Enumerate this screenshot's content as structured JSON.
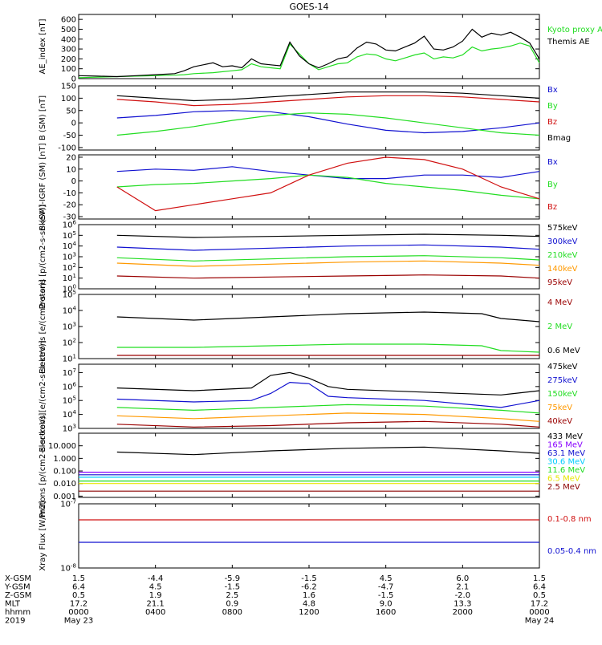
{
  "title": "GOES-14",
  "colors": {
    "black": "#000000",
    "blue": "#1010d0",
    "green": "#22dd22",
    "red": "#d01010",
    "dark_red": "#9a0000",
    "orange": "#ff9900",
    "yellow": "#e6e600",
    "cyan": "#00ccff",
    "pink": "#ff9999",
    "purple": "#8800ff",
    "brown": "#8b0000"
  },
  "chart_data": [
    {
      "type": "line",
      "ylabel": "AE_index [nT]",
      "ylim": [
        0,
        650
      ],
      "ticks": [
        "600",
        "500",
        "400",
        "300",
        "200",
        "100",
        "0"
      ],
      "tick_values": [
        600,
        500,
        400,
        300,
        200,
        100,
        0
      ],
      "legend": [
        "Kyoto proxy AE",
        "Themis AE"
      ],
      "series": [
        {
          "name": "Kyoto proxy AE",
          "color": "green",
          "x": [
            0,
            1,
            2,
            3,
            4,
            5,
            5.5,
            6,
            7,
            7.5,
            8,
            8.5,
            9,
            9.5,
            10,
            10.5,
            11,
            11.5,
            12,
            12.5,
            13,
            13.5,
            14,
            14.5,
            15,
            15.5,
            16,
            16.5,
            17,
            17.5,
            18,
            18.5,
            19,
            19.5,
            20,
            20.5,
            21,
            21.5,
            22,
            22.5,
            23,
            23.5,
            24
          ],
          "values": [
            10,
            15,
            20,
            25,
            30,
            35,
            40,
            50,
            60,
            70,
            80,
            90,
            150,
            120,
            110,
            100,
            350,
            250,
            150,
            90,
            120,
            150,
            160,
            220,
            250,
            240,
            200,
            180,
            210,
            240,
            260,
            200,
            220,
            210,
            240,
            320,
            280,
            300,
            310,
            330,
            360,
            330,
            160
          ]
        },
        {
          "name": "Themis AE",
          "color": "black",
          "x": [
            0,
            1,
            2,
            3,
            4,
            5,
            5.5,
            6,
            7,
            7.5,
            8,
            8.5,
            9,
            9.5,
            10,
            10.5,
            11,
            11.5,
            12,
            12.5,
            13,
            13.5,
            14,
            14.5,
            15,
            15.5,
            16,
            16.5,
            17,
            17.5,
            18,
            18.5,
            19,
            19.5,
            20,
            20.5,
            21,
            21.5,
            22,
            22.5,
            23,
            23.5,
            24
          ],
          "values": [
            30,
            25,
            20,
            30,
            40,
            50,
            80,
            120,
            160,
            120,
            130,
            110,
            200,
            150,
            140,
            130,
            370,
            230,
            150,
            110,
            150,
            200,
            220,
            310,
            370,
            350,
            290,
            280,
            320,
            360,
            430,
            300,
            290,
            320,
            380,
            500,
            420,
            460,
            440,
            470,
            420,
            360,
            200
          ]
        }
      ]
    },
    {
      "type": "line",
      "ylabel": "B (SM) [nT]",
      "ylim": [
        -110,
        150
      ],
      "ticks": [
        "150",
        "100",
        "50",
        "0",
        "-50",
        "-100"
      ],
      "tick_values": [
        150,
        100,
        50,
        0,
        -50,
        -100
      ],
      "legend": [
        "Bx",
        "By",
        "Bz",
        "Bmag"
      ],
      "series": [
        {
          "name": "Bx",
          "color": "blue",
          "x": [
            2,
            4,
            6,
            8,
            10,
            12,
            14,
            16,
            18,
            20,
            22,
            24
          ],
          "values": [
            20,
            30,
            45,
            50,
            45,
            25,
            -5,
            -30,
            -40,
            -35,
            -20,
            0
          ]
        },
        {
          "name": "By",
          "color": "green",
          "x": [
            2,
            4,
            6,
            8,
            10,
            12,
            14,
            16,
            18,
            20,
            22,
            24
          ],
          "values": [
            -50,
            -35,
            -15,
            10,
            30,
            40,
            35,
            20,
            0,
            -20,
            -40,
            -50
          ]
        },
        {
          "name": "Bz",
          "color": "red",
          "x": [
            2,
            4,
            6,
            8,
            10,
            12,
            14,
            16,
            18,
            20,
            22,
            24
          ],
          "values": [
            95,
            85,
            70,
            75,
            85,
            95,
            105,
            110,
            110,
            105,
            95,
            85
          ]
        },
        {
          "name": "Bmag",
          "color": "black",
          "x": [
            2,
            4,
            6,
            8,
            10,
            12,
            14,
            16,
            18,
            20,
            22,
            24
          ],
          "values": [
            110,
            100,
            90,
            95,
            105,
            115,
            125,
            125,
            125,
            120,
            110,
            100
          ]
        }
      ]
    },
    {
      "type": "line",
      "ylabel": "B (SM)-IGRF (SM) [nT]",
      "ylim": [
        -32,
        22
      ],
      "ticks": [
        "20",
        "10",
        "0",
        "-10",
        "-20",
        "-30"
      ],
      "tick_values": [
        20,
        10,
        0,
        -10,
        -20,
        -30
      ],
      "legend": [
        "Bx",
        "By",
        "Bz"
      ],
      "series": [
        {
          "name": "Bx",
          "color": "blue",
          "x": [
            2,
            4,
            6,
            8,
            10,
            12,
            14,
            16,
            18,
            20,
            22,
            24
          ],
          "values": [
            8,
            10,
            9,
            12,
            8,
            5,
            2,
            2,
            5,
            5,
            3,
            8
          ]
        },
        {
          "name": "By",
          "color": "green",
          "x": [
            2,
            4,
            6,
            8,
            10,
            12,
            14,
            16,
            18,
            20,
            22,
            24
          ],
          "values": [
            -5,
            -3,
            -2,
            0,
            2,
            5,
            3,
            -2,
            -5,
            -8,
            -12,
            -15
          ]
        },
        {
          "name": "Bz",
          "color": "red",
          "x": [
            2,
            4,
            6,
            8,
            10,
            12,
            14,
            16,
            18,
            20,
            22,
            24
          ],
          "values": [
            -5,
            -25,
            -20,
            -15,
            -10,
            5,
            15,
            20,
            18,
            10,
            -5,
            -15
          ]
        }
      ]
    },
    {
      "type": "line",
      "log": true,
      "ylabel": "Protons [p/(cm2-s-sr-keV)]",
      "ylim": [
        0,
        6
      ],
      "ticks": [
        "10^6",
        "10^5",
        "10^4",
        "10^3",
        "10^2",
        "10^1",
        "10^0"
      ],
      "tick_values": [
        6,
        5,
        4,
        3,
        2,
        1,
        0
      ],
      "legend": [
        "575keV",
        "300keV",
        "210keV",
        "140keV",
        "95keV"
      ],
      "series": [
        {
          "name": "575keV",
          "color": "black",
          "x": [
            2,
            6,
            10,
            14,
            18,
            22,
            24
          ],
          "values": [
            5.0,
            4.8,
            4.9,
            5.0,
            5.1,
            5.0,
            4.9
          ]
        },
        {
          "name": "300keV",
          "color": "blue",
          "x": [
            2,
            6,
            10,
            14,
            18,
            22,
            24
          ],
          "values": [
            3.9,
            3.6,
            3.8,
            4.0,
            4.1,
            3.9,
            3.7
          ]
        },
        {
          "name": "210keV",
          "color": "green",
          "x": [
            2,
            6,
            10,
            14,
            18,
            22,
            24
          ],
          "values": [
            2.9,
            2.6,
            2.8,
            3.0,
            3.1,
            2.9,
            2.7
          ]
        },
        {
          "name": "140keV",
          "color": "orange",
          "x": [
            2,
            6,
            10,
            14,
            18,
            22,
            24
          ],
          "values": [
            2.4,
            2.1,
            2.3,
            2.5,
            2.6,
            2.4,
            2.2
          ]
        },
        {
          "name": "95keV",
          "color": "dark_red",
          "x": [
            2,
            6,
            10,
            14,
            18,
            22,
            24
          ],
          "values": [
            1.2,
            1.0,
            1.1,
            1.2,
            1.3,
            1.2,
            1.0
          ]
        }
      ]
    },
    {
      "type": "line",
      "log": true,
      "ylabel": "Electrons [e/(cm2-s-sr)]",
      "ylim": [
        1,
        5
      ],
      "ticks": [
        "10^5",
        "10^4",
        "10^3",
        "10^2",
        "10^1"
      ],
      "tick_values": [
        5,
        4,
        3,
        2,
        1
      ],
      "legend": [
        "4 MeV",
        "2 MeV",
        "0.6 MeV"
      ],
      "series": [
        {
          "name": "4 MeV",
          "color": "dark_red",
          "x": [
            2,
            24
          ],
          "values": [
            1.2,
            1.2
          ]
        },
        {
          "name": "2 MeV",
          "color": "green",
          "x": [
            2,
            6,
            10,
            14,
            18,
            21,
            22,
            24
          ],
          "values": [
            1.7,
            1.7,
            1.8,
            1.9,
            1.9,
            1.8,
            1.5,
            1.4
          ]
        },
        {
          "name": "0.6 MeV",
          "color": "black",
          "x": [
            2,
            6,
            10,
            14,
            18,
            21,
            22,
            24
          ],
          "values": [
            3.6,
            3.4,
            3.6,
            3.8,
            3.9,
            3.8,
            3.5,
            3.3
          ]
        }
      ]
    },
    {
      "type": "line",
      "log": true,
      "ylabel": "Electrons [e/(cm2-s-sr-keV)]",
      "ylim": [
        3,
        7.6
      ],
      "ticks": [
        "10^7",
        "10^6",
        "10^5",
        "10^4",
        "10^3"
      ],
      "tick_values": [
        7,
        6,
        5,
        4,
        3
      ],
      "legend": [
        "475keV",
        "275keV",
        "150keV",
        "75keV",
        "40keV"
      ],
      "series": [
        {
          "name": "475keV",
          "color": "black",
          "x": [
            2,
            6,
            9,
            10,
            11,
            12,
            13,
            14,
            18,
            22,
            24
          ],
          "values": [
            5.9,
            5.7,
            5.9,
            6.8,
            7.0,
            6.6,
            6.0,
            5.8,
            5.6,
            5.4,
            5.7
          ]
        },
        {
          "name": "275keV",
          "color": "blue",
          "x": [
            2,
            6,
            9,
            10,
            11,
            12,
            13,
            14,
            18,
            22,
            24
          ],
          "values": [
            5.1,
            4.9,
            5.0,
            5.5,
            6.3,
            6.2,
            5.3,
            5.2,
            5.0,
            4.5,
            5.0
          ]
        },
        {
          "name": "150keV",
          "color": "green",
          "x": [
            2,
            6,
            10,
            14,
            18,
            22,
            24
          ],
          "values": [
            4.5,
            4.3,
            4.5,
            4.7,
            4.6,
            4.3,
            4.1
          ]
        },
        {
          "name": "75keV",
          "color": "orange",
          "x": [
            2,
            6,
            10,
            14,
            18,
            22,
            24
          ],
          "values": [
            3.9,
            3.7,
            3.9,
            4.1,
            4.0,
            3.7,
            3.5
          ]
        },
        {
          "name": "40keV",
          "color": "dark_red",
          "x": [
            2,
            6,
            10,
            14,
            18,
            22,
            24
          ],
          "values": [
            3.3,
            3.1,
            3.2,
            3.4,
            3.5,
            3.3,
            3.1
          ]
        }
      ]
    },
    {
      "type": "line",
      "log": true,
      "ylabel": "Protons [p/(cm2-s-sr-keV)]",
      "ylim": [
        -3.1,
        2
      ],
      "ticks": [
        "10.000",
        "1.000",
        "0.100",
        "0.010",
        "0.001"
      ],
      "tick_values": [
        1,
        0,
        -1,
        -2,
        -3
      ],
      "legend": [
        "433 MeV",
        "165 MeV",
        "63.1 MeV",
        "30.6 MeV",
        "11.6 MeV",
        "6.5 MeV",
        "2.5 MeV"
      ],
      "series": [
        {
          "name": "433 MeV",
          "color": "black",
          "x": [
            2,
            6,
            10,
            14,
            18,
            22,
            24
          ],
          "values": [
            0.5,
            0.3,
            0.6,
            0.8,
            0.9,
            0.6,
            0.4
          ]
        },
        {
          "name": "165 MeV",
          "color": "purple",
          "x": [
            0,
            24
          ],
          "values": [
            -1.1,
            -1.1
          ]
        },
        {
          "name": "63.1 MeV",
          "color": "blue",
          "x": [
            0,
            24
          ],
          "values": [
            -1.3,
            -1.3
          ]
        },
        {
          "name": "30.6 MeV",
          "color": "cyan",
          "x": [
            0,
            24
          ],
          "values": [
            -1.5,
            -1.5
          ]
        },
        {
          "name": "11.6 MeV",
          "color": "green",
          "x": [
            0,
            24
          ],
          "values": [
            -1.8,
            -1.8
          ]
        },
        {
          "name": "6.5 MeV",
          "color": "yellow",
          "x": [
            0,
            24
          ],
          "values": [
            -2.0,
            -2.0
          ]
        },
        {
          "name": "2.5 MeV",
          "color": "brown",
          "x": [
            0,
            24
          ],
          "values": [
            -2.6,
            -2.6
          ]
        }
      ]
    },
    {
      "type": "line",
      "log": true,
      "ylabel": "Xray Flux [W/m2]",
      "ylim": [
        -8,
        -7
      ],
      "ticks": [
        "10^-7",
        "10^-8"
      ],
      "tick_values": [
        -7,
        -8
      ],
      "legend": [
        "0.1-0.8 nm",
        "0.05-0.4 nm"
      ],
      "series": [
        {
          "name": "0.1-0.8 nm",
          "color": "red",
          "x": [
            0,
            24
          ],
          "values": [
            -7.25,
            -7.25
          ]
        },
        {
          "name": "0.05-0.4 nm",
          "color": "blue",
          "x": [
            0,
            24
          ],
          "values": [
            -7.6,
            -7.6
          ]
        }
      ]
    }
  ],
  "xaxis": {
    "row_labels": [
      "X-GSM",
      "Y-GSM",
      "Z-GSM",
      "MLT",
      "hhmm",
      "2019"
    ],
    "columns": [
      {
        "hour": 0,
        "values": [
          "1.5",
          "6.4",
          "0.5",
          "17.2",
          "0000",
          "May 23"
        ]
      },
      {
        "hour": 4,
        "values": [
          "-4.4",
          "4.5",
          "1.9",
          "21.1",
          "0400",
          ""
        ]
      },
      {
        "hour": 8,
        "values": [
          "-5.9",
          "-1.5",
          "2.5",
          "0.9",
          "0800",
          ""
        ]
      },
      {
        "hour": 12,
        "values": [
          "-1.5",
          "-6.2",
          "1.6",
          "4.8",
          "1200",
          ""
        ]
      },
      {
        "hour": 16,
        "values": [
          "4.5",
          "-4.7",
          "-1.5",
          "9.0",
          "1600",
          ""
        ]
      },
      {
        "hour": 20,
        "values": [
          "6.0",
          "2.1",
          "-2.0",
          "13.3",
          "2000",
          ""
        ]
      },
      {
        "hour": 24,
        "values": [
          "1.5",
          "6.4",
          "0.5",
          "17.2",
          "0000",
          "May 24"
        ]
      }
    ]
  }
}
